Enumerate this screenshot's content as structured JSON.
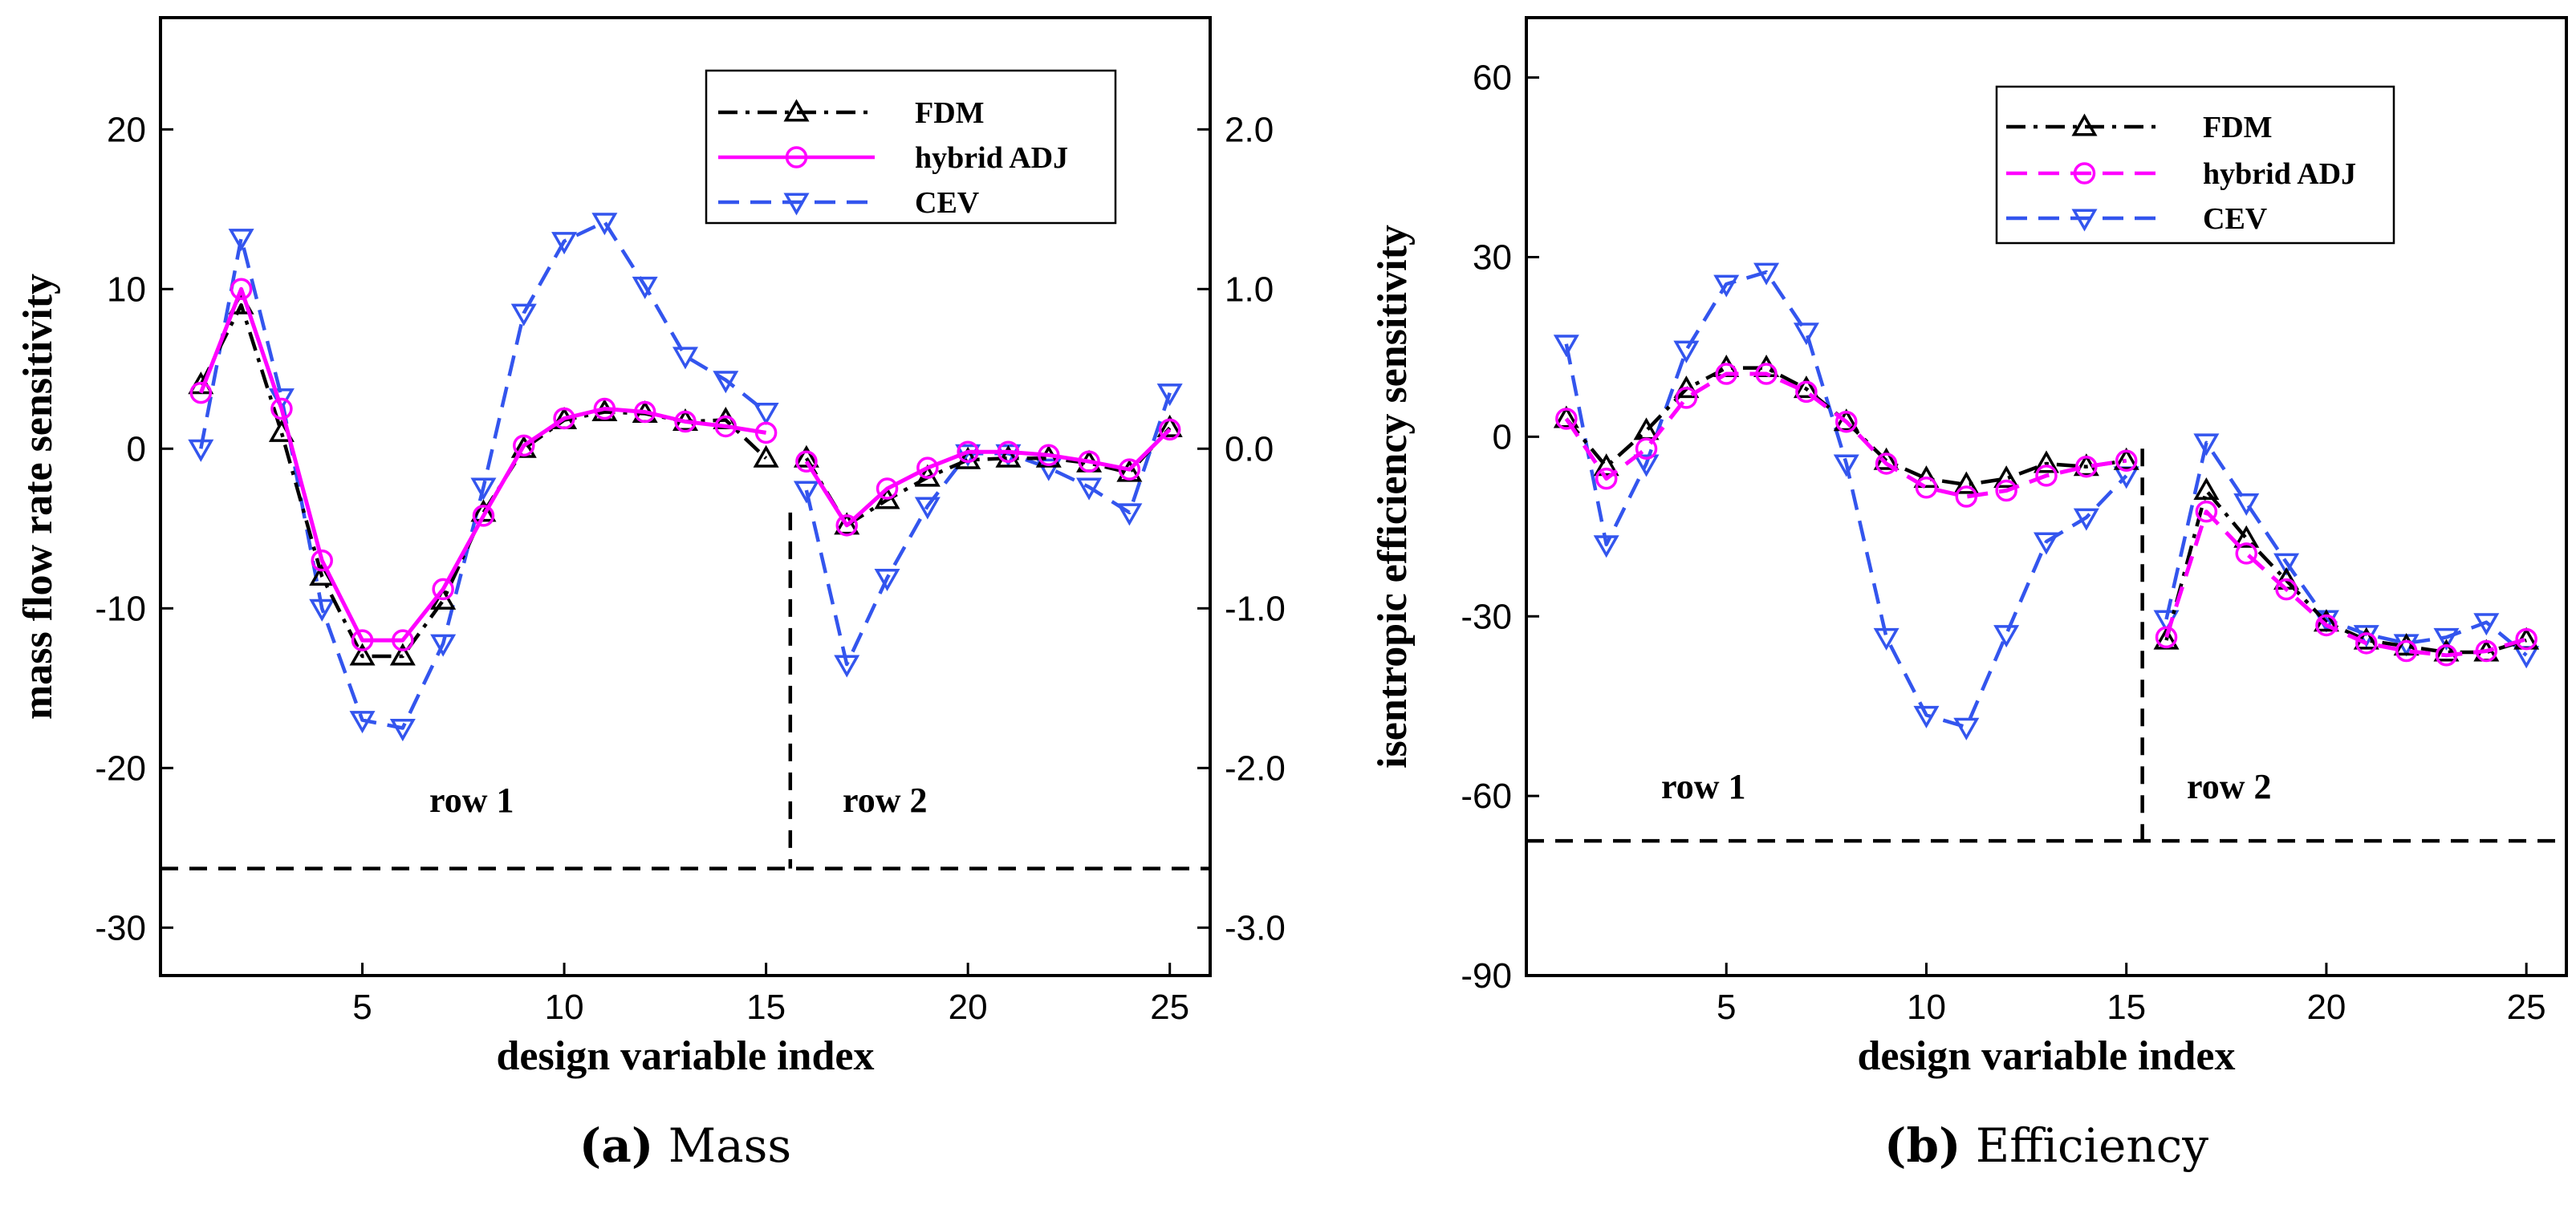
{
  "chart_data": [
    {
      "type": "line",
      "panel": "a",
      "caption_label": "(a)",
      "caption_title": "Mass",
      "xlabel": "design variable index",
      "ylabel": "mass flow rate sensitivity",
      "xlim": [
        0,
        26
      ],
      "ylim": [
        -33,
        27
      ],
      "xticks": [
        "5",
        "10",
        "15",
        "20",
        "25"
      ],
      "xtick_values": [
        5,
        10,
        15,
        20,
        25
      ],
      "yticks": [
        "20",
        "10",
        "0",
        "-10",
        "-20",
        "-30"
      ],
      "ytick_values": [
        20,
        10,
        0,
        -10,
        -20,
        -30
      ],
      "y2ticks": [
        "2.0",
        "1.0",
        "0.0",
        "-1.0",
        "-2.0",
        "-3.0"
      ],
      "y2tick_values": [
        20,
        10,
        0,
        -10,
        -20,
        -30
      ],
      "row_labels": [
        "row 1",
        "row 2"
      ],
      "row_label_positions": [
        {
          "x": 6,
          "y": -22.5
        },
        {
          "x": 18,
          "y": -22.5
        }
      ],
      "divider": {
        "x": 15.6,
        "y_top": -4,
        "y_bottom": -26.3,
        "hline_y": -26.3
      },
      "legend": [
        "FDM",
        "hybrid ADJ",
        "CEV"
      ],
      "series": [
        {
          "name": "FDM",
          "color": "#000000",
          "dash": "dashdot",
          "marker": "triangle-up",
          "x": [
            1,
            2,
            3,
            4,
            5,
            6,
            7,
            8,
            9,
            10,
            11,
            12,
            13,
            14,
            15,
            16,
            17,
            18,
            19,
            20,
            21,
            22,
            23,
            24,
            25
          ],
          "values": [
            4,
            9,
            1,
            -8,
            -13,
            -13,
            -9.5,
            -4,
            0,
            1.8,
            2.3,
            2.2,
            1.7,
            1.8,
            -0.6,
            -0.6,
            -4.8,
            -3.2,
            -1.8,
            -0.7,
            -0.6,
            -0.6,
            -0.9,
            -1.5,
            1.3
          ]
        },
        {
          "name": "hybrid ADJ",
          "color": "#ff00ff",
          "dash": "solid",
          "marker": "circle",
          "x": [
            1,
            2,
            3,
            4,
            5,
            6,
            7,
            8,
            9,
            10,
            11,
            12,
            13,
            14,
            15,
            16,
            17,
            18,
            19,
            20,
            21,
            22,
            23,
            24,
            25
          ],
          "values": [
            3.5,
            10,
            2.5,
            -7,
            -12,
            -12,
            -8.8,
            -4.2,
            0.2,
            1.9,
            2.5,
            2.3,
            1.7,
            1.4,
            1,
            -0.8,
            -4.8,
            -2.5,
            -1.2,
            -0.2,
            -0.2,
            -0.4,
            -0.8,
            -1.3,
            1.2
          ]
        },
        {
          "name": "CEV",
          "color": "#3355ee",
          "dash": "dashed",
          "marker": "triangle-down",
          "x": [
            1,
            2,
            3,
            4,
            5,
            6,
            7,
            8,
            9,
            10,
            11,
            12,
            13,
            14,
            15,
            16,
            17,
            18,
            19,
            20,
            21,
            22,
            23,
            24,
            25
          ],
          "values": [
            0,
            13.2,
            3.2,
            -10,
            -17,
            -17.5,
            -12.2,
            -2.4,
            8.5,
            13,
            14.2,
            10.2,
            5.8,
            4.3,
            2.3,
            -2.6,
            -13.5,
            -8.1,
            -3.6,
            -0.3,
            -0.3,
            -1.2,
            -2.4,
            -4,
            3.5
          ]
        }
      ]
    },
    {
      "type": "line",
      "panel": "b",
      "caption_label": "(b)",
      "caption_title": "Efficiency",
      "xlabel": "design variable index",
      "ylabel": "isentropic efficiency sensitivity",
      "xlim": [
        0,
        26
      ],
      "ylim": [
        -90,
        70
      ],
      "xticks": [
        "5",
        "10",
        "15",
        "20",
        "25"
      ],
      "xtick_values": [
        5,
        10,
        15,
        20,
        25
      ],
      "yticks": [
        "60",
        "30",
        "0",
        "-30",
        "-60",
        "-90"
      ],
      "ytick_values": [
        60,
        30,
        0,
        -30,
        -60,
        -90
      ],
      "row_labels": [
        "row 1",
        "row 2"
      ],
      "row_label_positions": [
        {
          "x": 4.3,
          "y": -58
        },
        {
          "x": 17.8,
          "y": -58
        }
      ],
      "divider": {
        "x": 15.4,
        "y_top": -2,
        "y_bottom": -67.5,
        "hline_y": -67.5
      },
      "legend": [
        "FDM",
        "hybrid ADJ",
        "CEV"
      ],
      "series": [
        {
          "name": "FDM",
          "color": "#000000",
          "dash": "dashdot",
          "marker": "triangle-up",
          "x": [
            1,
            2,
            3,
            4,
            5,
            6,
            7,
            8,
            9,
            10,
            11,
            12,
            13,
            14,
            15,
            16,
            17,
            18,
            19,
            20,
            21,
            22,
            23,
            24,
            25
          ],
          "values": [
            3,
            -5,
            1,
            8,
            11.5,
            11.5,
            8,
            2.5,
            -4,
            -7,
            -8,
            -7,
            -4.5,
            -5,
            -4,
            -34,
            -9,
            -17,
            -24,
            -31,
            -34,
            -35,
            -36,
            -36,
            -34
          ]
        },
        {
          "name": "hybrid ADJ",
          "color": "#ff00ff",
          "dash": "dashed",
          "marker": "circle",
          "x": [
            1,
            2,
            3,
            4,
            5,
            6,
            7,
            8,
            9,
            10,
            11,
            12,
            13,
            14,
            15,
            16,
            17,
            18,
            19,
            20,
            21,
            22,
            23,
            24,
            25
          ],
          "values": [
            3,
            -7,
            -2,
            6.5,
            10.5,
            10.5,
            7.5,
            2.5,
            -4.5,
            -8.5,
            -10,
            -9,
            -6.5,
            -5,
            -4,
            -33.5,
            -12.5,
            -19.5,
            -25.5,
            -31.5,
            -34.5,
            -35.8,
            -36.5,
            -35.8,
            -33.8
          ]
        },
        {
          "name": "CEV",
          "color": "#3355ee",
          "dash": "dashed",
          "marker": "triangle-down",
          "x": [
            1,
            2,
            3,
            4,
            5,
            6,
            7,
            8,
            9,
            10,
            11,
            12,
            13,
            14,
            15,
            16,
            17,
            18,
            19,
            20,
            21,
            22,
            23,
            24,
            25
          ],
          "values": [
            15.5,
            -18,
            -4.5,
            14.5,
            25.5,
            27.5,
            17.5,
            -4.5,
            -33.5,
            -46.5,
            -48.5,
            -33,
            -17.5,
            -13.5,
            -6.5,
            -30.5,
            -1,
            -11,
            -21,
            -30.5,
            -33,
            -34.5,
            -33.5,
            -31,
            -36.5
          ]
        }
      ]
    }
  ]
}
